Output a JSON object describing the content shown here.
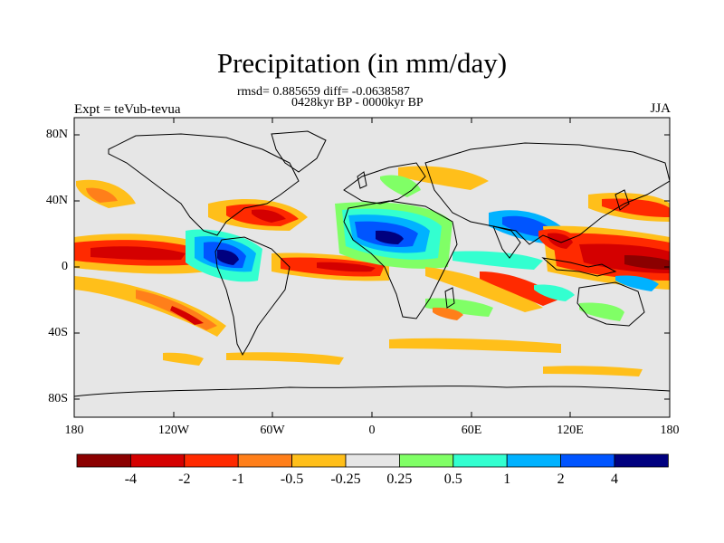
{
  "title": "Precipitation (in mm/day)",
  "stats": "rmsd= 0.885659 diff= -0.0638587",
  "comparison": "0428kyr BP - 0000kyr BP",
  "experiment": "Expt = teVub-tevua",
  "season": "JJA",
  "map": {
    "lat_ticks": [
      "80N",
      "40N",
      "0",
      "40S",
      "80S"
    ],
    "lon_ticks": [
      "180",
      "120W",
      "60W",
      "0",
      "60E",
      "120E",
      "180"
    ],
    "background_color": "#e6e6e6",
    "coastline_color": "#000000"
  },
  "colorbar": {
    "labels": [
      "-4",
      "-2",
      "-1",
      "-0.5",
      "-0.25",
      "0.25",
      "0.5",
      "1",
      "2",
      "4"
    ],
    "colors": [
      "#8b0000",
      "#d40000",
      "#ff2a00",
      "#ff7f1a",
      "#ffbf1a",
      "#e6e6e6",
      "#80ff66",
      "#33ffd0",
      "#00b2ff",
      "#0055ff",
      "#00007f"
    ]
  }
}
